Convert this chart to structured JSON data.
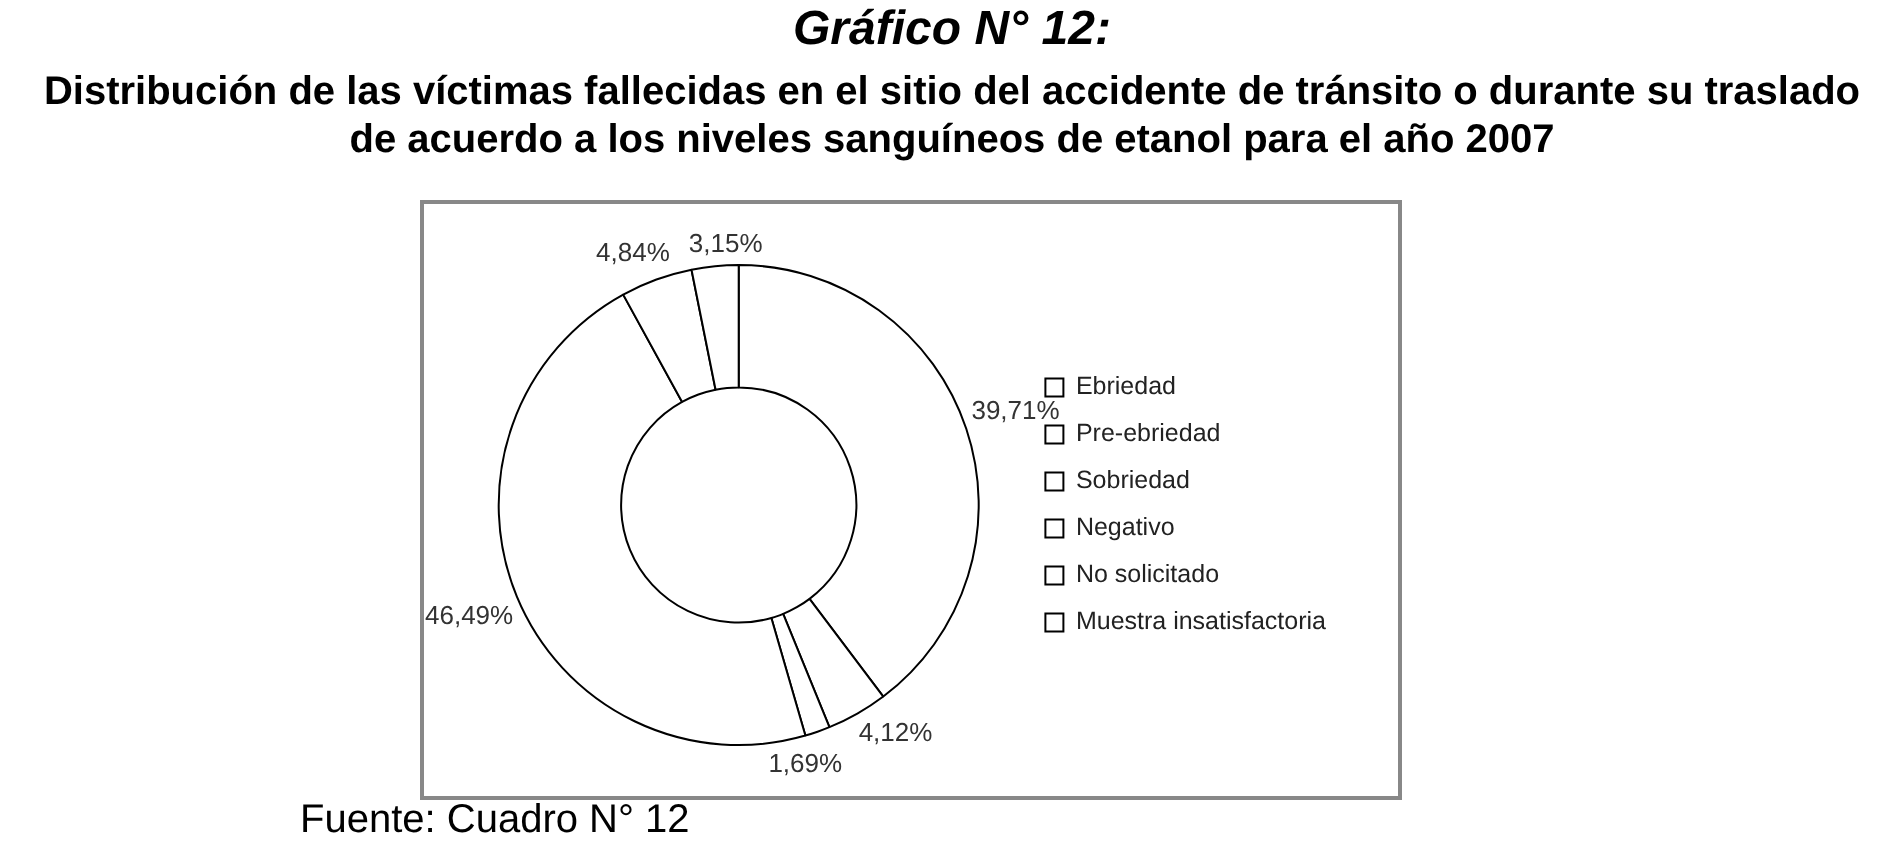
{
  "chart_data": {
    "type": "donut",
    "title": "Gráfico N° 12:",
    "subtitle": "Distribución de las víctimas fallecidas en el sitio del accidente de tránsito o durante su traslado de acuerdo a los niveles sanguíneos de etanol para el año 2007",
    "categories": [
      "Ebriedad",
      "Pre-ebriedad",
      "Sobriedad",
      "Negativo",
      "No solicitado",
      "Muestra insatisfactoria"
    ],
    "values": [
      39.71,
      4.12,
      1.69,
      46.49,
      4.84,
      3.15
    ],
    "colors": [
      "#ffffff",
      "#ffffff",
      "#ffffff",
      "#ffffff",
      "#ffffff",
      "#ffffff"
    ],
    "value_labels": [
      "39,71%",
      "4,12%",
      "1,69%",
      "46,49%",
      "4,84%",
      "3,15%"
    ],
    "legend": "right",
    "annotations": [
      "Fuente: Cuadro N° 12"
    ]
  }
}
